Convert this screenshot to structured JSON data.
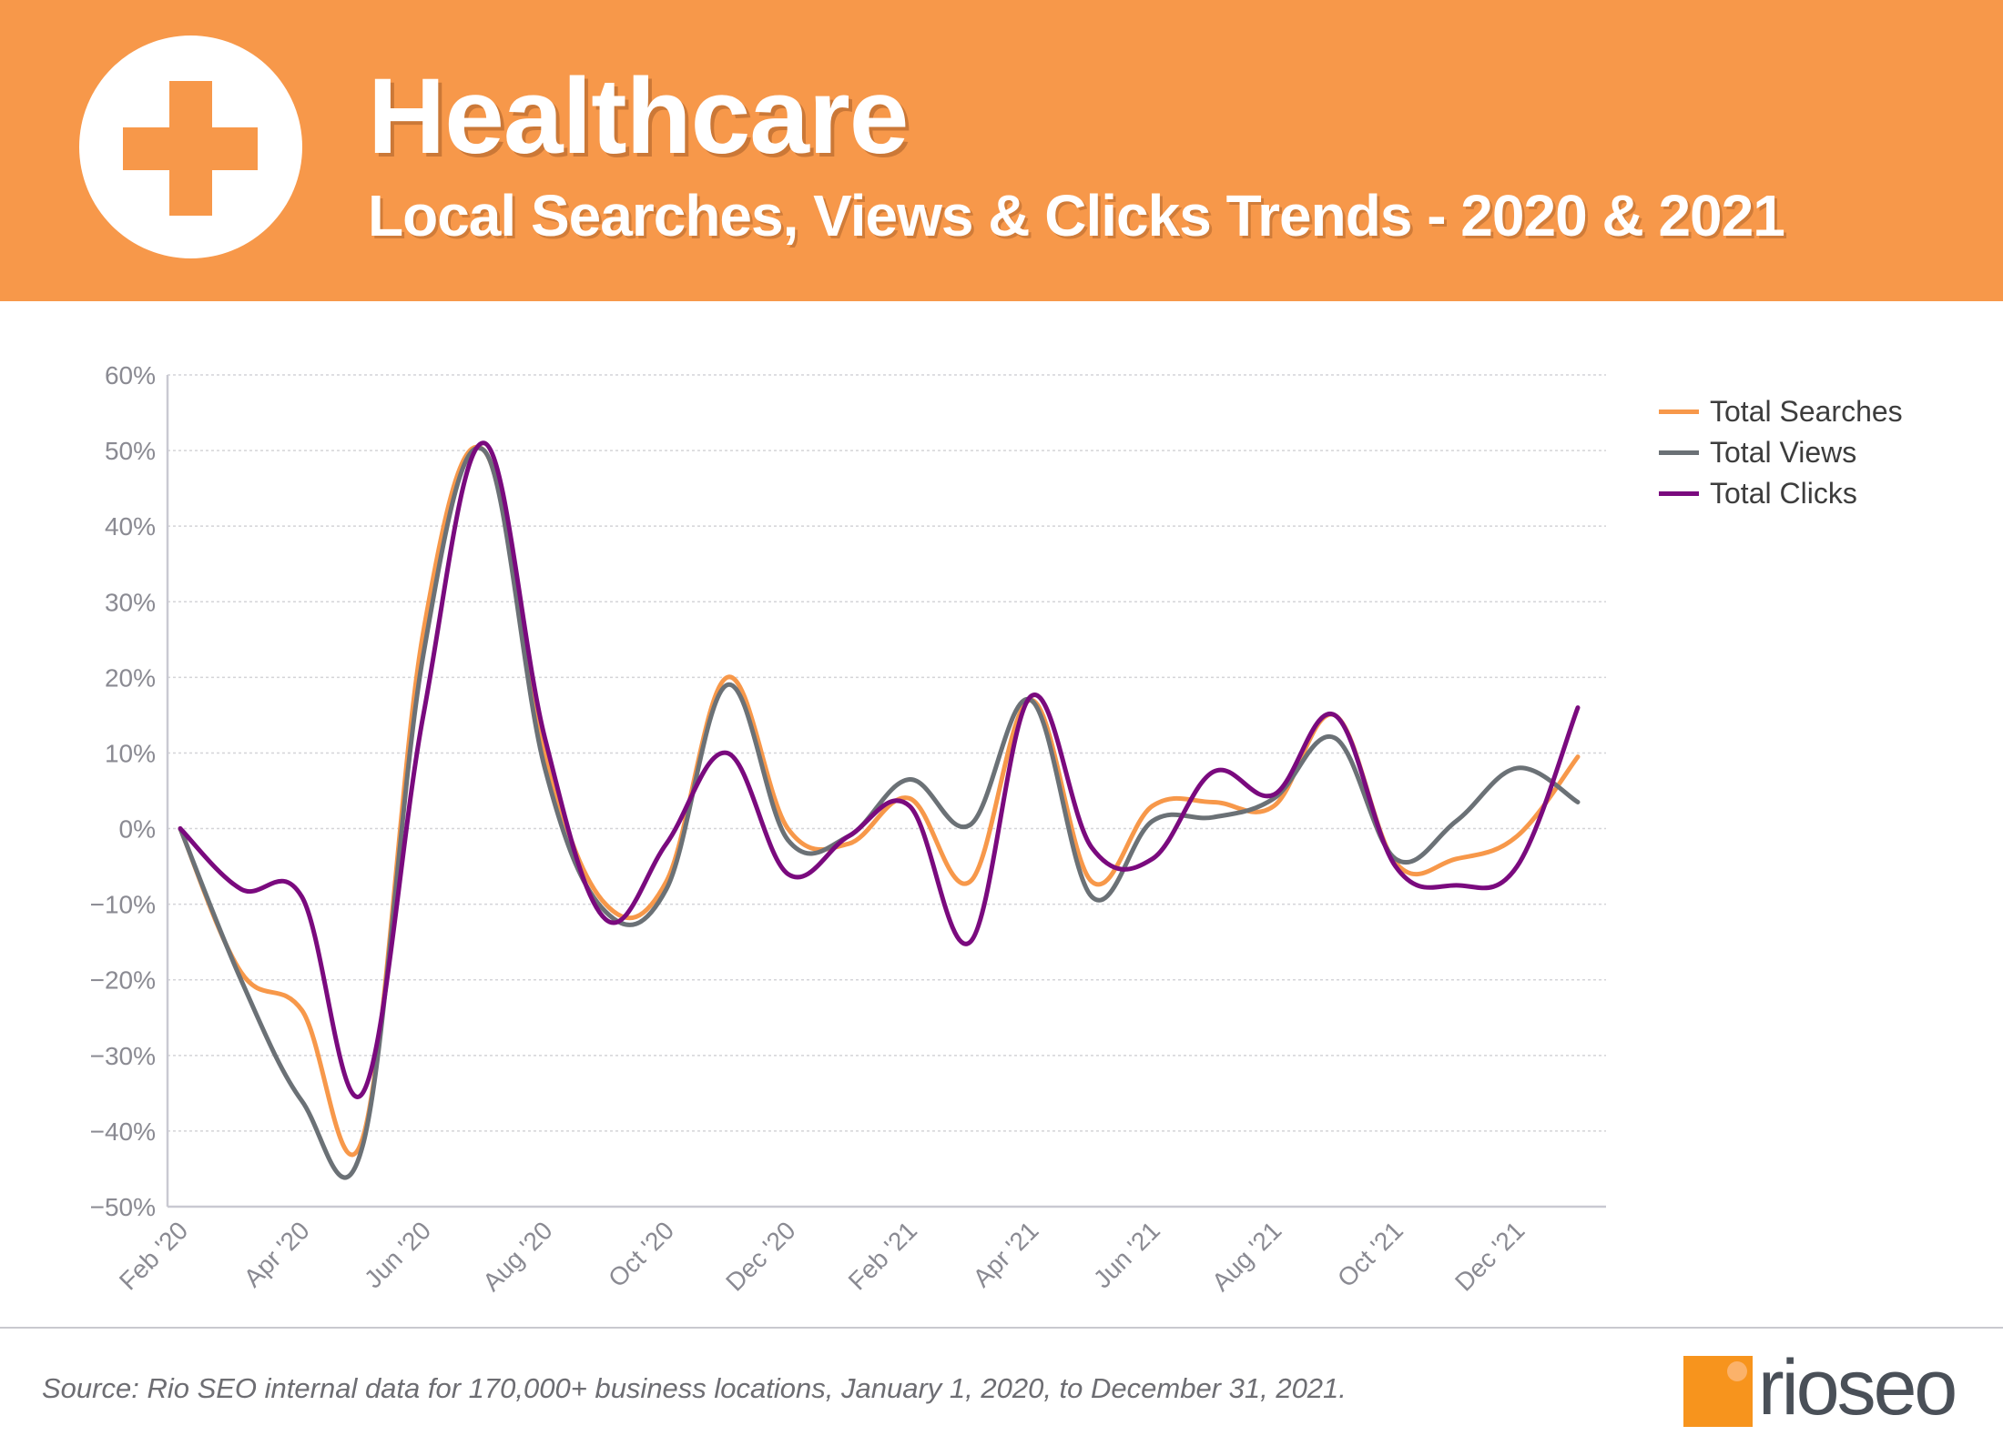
{
  "header": {
    "title": "Healthcare",
    "subtitle": "Local Searches, Views & Clicks Trends - 2020 & 2021",
    "icon": "medical-cross-icon",
    "background_color": "#F7984A"
  },
  "chart_data": {
    "type": "line",
    "smooth": true,
    "x": [
      "Feb '20",
      "Mar '20",
      "Apr '20",
      "May '20",
      "Jun '20",
      "Jul '20",
      "Aug '20",
      "Sep '20",
      "Oct '20",
      "Nov '20",
      "Dec '20",
      "Jan '21",
      "Feb '21",
      "Mar '21",
      "Apr '21",
      "May '21",
      "Jun '21",
      "Jul '21",
      "Aug '21",
      "Sep '21",
      "Oct '21",
      "Nov '21",
      "Dec '21",
      "Jan '22"
    ],
    "x_tick_labels": [
      "Feb '20",
      "Apr '20",
      "Jun '20",
      "Aug '20",
      "Oct '20",
      "Dec '20",
      "Feb '21",
      "Apr '21",
      "Jun '21",
      "Aug '21",
      "Oct '21",
      "Dec '21"
    ],
    "y_tick_labels": [
      "60%",
      "50%",
      "40%",
      "30%",
      "20%",
      "10%",
      "0%",
      "−10%",
      "−20%",
      "−30%",
      "−40%",
      "−50%"
    ],
    "ylim": [
      -50,
      60
    ],
    "y_unit": "%",
    "grid": true,
    "legend_position": "right",
    "series": [
      {
        "name": "Total Searches",
        "color": "#F7984A",
        "values": [
          0,
          -19,
          -24,
          -41,
          26,
          50,
          10,
          -10,
          -7,
          20,
          0,
          -2,
          4,
          -7,
          17,
          -7,
          3,
          3.5,
          3,
          15,
          -4.5,
          -4,
          -1,
          9.5
        ]
      },
      {
        "name": "Total Views",
        "color": "#6B7176",
        "values": [
          0,
          -20,
          -36,
          -42,
          23,
          50,
          8,
          -11,
          -8,
          19,
          -1.5,
          -1,
          6.5,
          0.5,
          17,
          -9,
          1,
          1.5,
          4,
          12,
          -4,
          1,
          8,
          3.5
        ]
      },
      {
        "name": "Total Clicks",
        "color": "#7A0A7E",
        "values": [
          0,
          -8,
          -9,
          -35,
          15,
          51,
          12,
          -12,
          -2,
          10,
          -6,
          -1,
          3,
          -15,
          17.5,
          -2.5,
          -4,
          7.5,
          4.5,
          15,
          -5,
          -7.5,
          -5,
          16
        ]
      }
    ]
  },
  "footer": {
    "source": "Source: Rio SEO internal data for 170,000+ business locations, January 1, 2020, to December 31, 2021.",
    "logo_text": "rioseo"
  }
}
